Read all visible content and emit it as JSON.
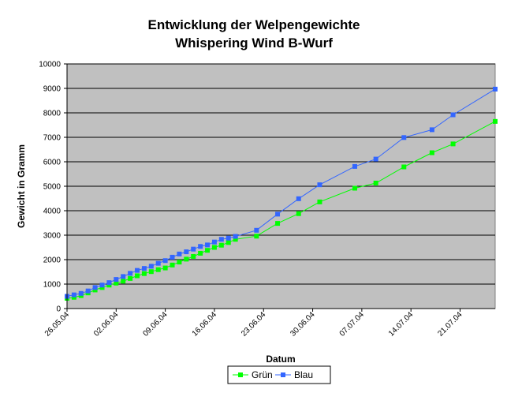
{
  "chart_data": {
    "type": "line",
    "title": [
      "Entwicklung der Welpengewichte",
      "Whispering Wind B-Wurf"
    ],
    "xlabel": "Datum",
    "ylabel": "Gewicht in Gramm",
    "ylim": [
      0,
      10000
    ],
    "yticks": [
      0,
      1000,
      2000,
      3000,
      4000,
      5000,
      6000,
      7000,
      8000,
      9000,
      10000
    ],
    "xlim_day": [
      0,
      61
    ],
    "xticks": [
      {
        "label": "26.05.04",
        "day": 0
      },
      {
        "label": "02.06.04",
        "day": 7
      },
      {
        "label": "09.06.04",
        "day": 14
      },
      {
        "label": "16.06.04",
        "day": 21
      },
      {
        "label": "23.06.04",
        "day": 28
      },
      {
        "label": "30.06.04",
        "day": 35
      },
      {
        "label": "07.07.04",
        "day": 42
      },
      {
        "label": "14.07.04",
        "day": 49
      },
      {
        "label": "21.07.04",
        "day": 56
      }
    ],
    "grid": "horizontal",
    "plot_background": "#c0c0c0",
    "legend_position": "bottom",
    "series": [
      {
        "name": "Grün",
        "color": "#00ff00",
        "x_day": [
          0,
          1,
          2,
          3,
          4,
          5,
          6,
          7,
          8,
          9,
          10,
          11,
          12,
          13,
          14,
          15,
          16,
          17,
          18,
          19,
          20,
          21,
          22,
          23,
          24,
          27,
          30,
          33,
          36,
          41,
          44,
          48,
          52,
          55,
          61
        ],
        "values": [
          420,
          460,
          530,
          640,
          760,
          860,
          960,
          1040,
          1120,
          1230,
          1340,
          1430,
          1510,
          1590,
          1660,
          1780,
          1900,
          2020,
          2130,
          2260,
          2380,
          2500,
          2590,
          2700,
          2830,
          2960,
          3480,
          3880,
          4360,
          4920,
          5130,
          5790,
          6370,
          6730,
          7650
        ]
      },
      {
        "name": "Blau",
        "color": "#3366ff",
        "x_day": [
          0,
          1,
          2,
          3,
          4,
          5,
          6,
          7,
          8,
          9,
          10,
          11,
          12,
          13,
          14,
          15,
          16,
          17,
          18,
          19,
          20,
          21,
          22,
          23,
          24,
          27,
          30,
          33,
          36,
          41,
          44,
          48,
          52,
          55,
          61
        ],
        "values": [
          500,
          560,
          620,
          720,
          860,
          960,
          1060,
          1190,
          1310,
          1440,
          1560,
          1640,
          1730,
          1850,
          1960,
          2100,
          2230,
          2320,
          2430,
          2540,
          2600,
          2720,
          2830,
          2880,
          2950,
          3200,
          3860,
          4490,
          5060,
          5810,
          6110,
          6990,
          7310,
          7920,
          8970
        ]
      }
    ]
  }
}
